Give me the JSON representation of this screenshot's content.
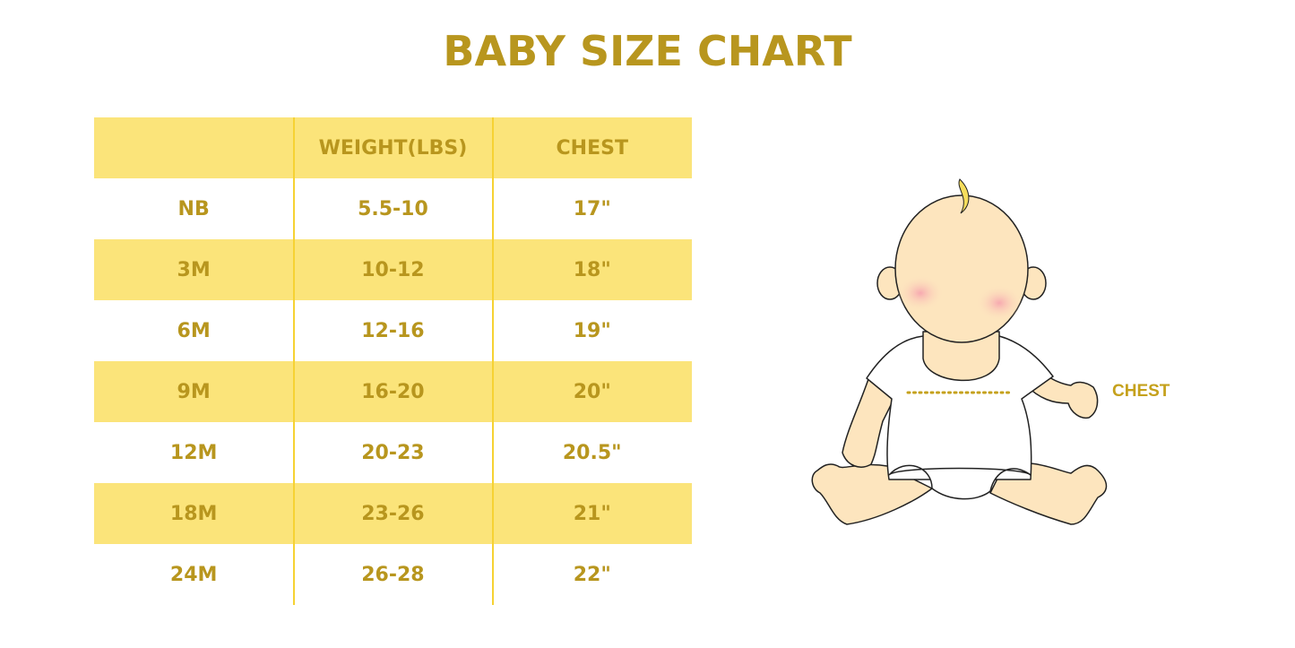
{
  "title": "BABY SIZE CHART",
  "table": {
    "headers": [
      "",
      "WEIGHT(LBS)",
      "CHEST"
    ],
    "rows": [
      [
        "NB",
        "5.5-10",
        "17\""
      ],
      [
        "3M",
        "10-12",
        "18\""
      ],
      [
        "6M",
        "12-16",
        "19\""
      ],
      [
        "9M",
        "16-20",
        "20\""
      ],
      [
        "12M",
        "20-23",
        "20.5\""
      ],
      [
        "18M",
        "23-26",
        "21\""
      ],
      [
        "24M",
        "26-28",
        "22\""
      ]
    ]
  },
  "illustration": {
    "chest_label": "CHEST"
  },
  "colors": {
    "accent_text": "#B8961E",
    "row_highlight": "#FBE47A",
    "skin": "#FDE5BE"
  }
}
